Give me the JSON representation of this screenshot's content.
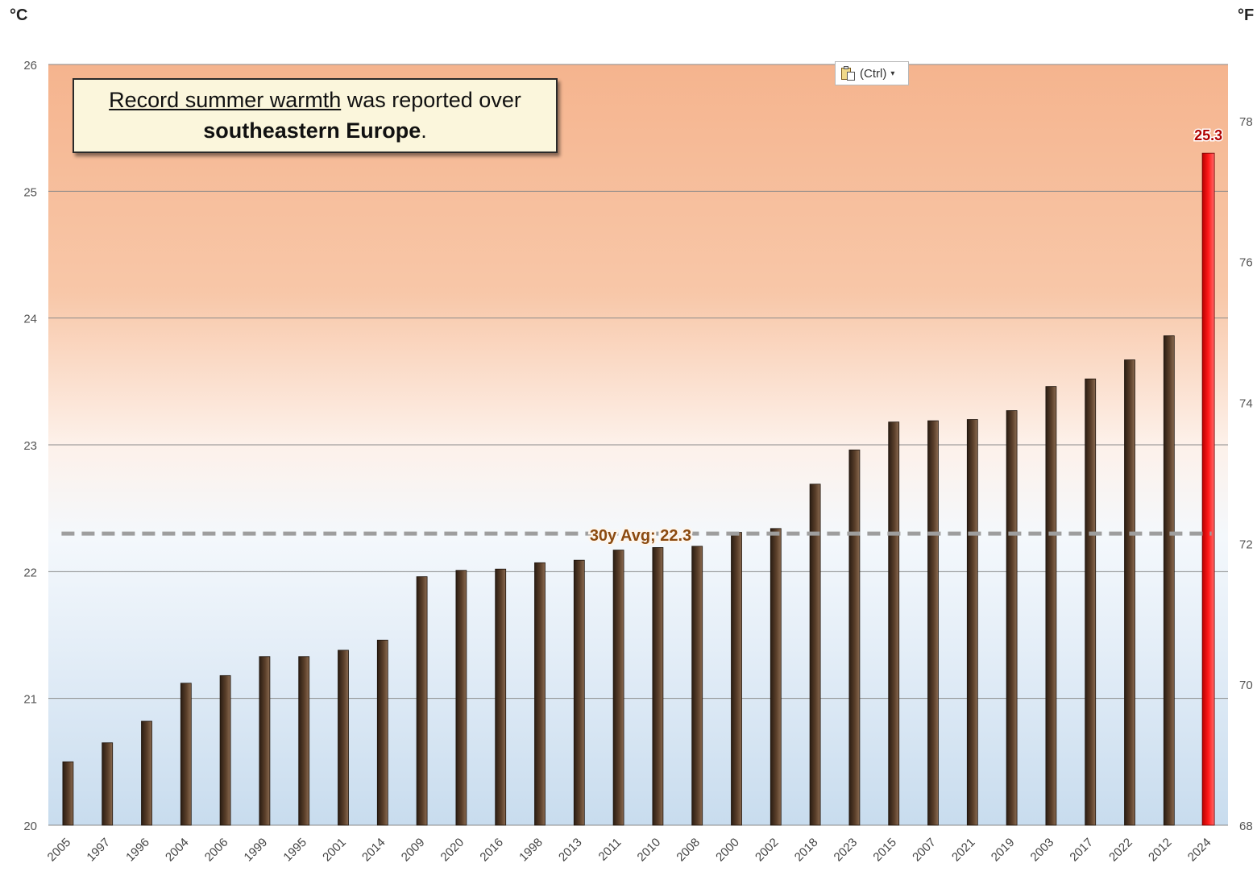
{
  "units": {
    "left": "°C",
    "right": "°F"
  },
  "callout": {
    "underlined": "Record summer warmth",
    "middle": " was reported over",
    "bold": "southeastern Europe",
    "end": "."
  },
  "paste_options": {
    "label": "(Ctrl)",
    "icon": "clipboard-icon"
  },
  "colors": {
    "bar": "#4a3322",
    "highlight_bar": "#e01010",
    "avg_line": "#9e9e9e",
    "avg_label": "#8b4a10",
    "highlight_label": "#b00000"
  },
  "chart_data": {
    "type": "bar",
    "categories": [
      "2005",
      "1997",
      "1996",
      "2004",
      "2006",
      "1999",
      "1995",
      "2001",
      "2014",
      "2009",
      "2020",
      "2016",
      "1998",
      "2013",
      "2011",
      "2010",
      "2008",
      "2000",
      "2002",
      "2018",
      "2023",
      "2015",
      "2007",
      "2021",
      "2019",
      "2003",
      "2017",
      "2022",
      "2012",
      "2024"
    ],
    "values": [
      20.5,
      20.65,
      20.82,
      21.12,
      21.18,
      21.33,
      21.33,
      21.38,
      21.46,
      21.96,
      22.01,
      22.02,
      22.07,
      22.09,
      22.17,
      22.19,
      22.2,
      22.31,
      22.34,
      22.69,
      22.96,
      23.18,
      23.19,
      23.2,
      23.27,
      23.46,
      23.52,
      23.67,
      23.86,
      25.3
    ],
    "title": "",
    "xlabel": "",
    "ylabel": "°C",
    "ylim": [
      20,
      26
    ],
    "y_ticks": [
      20,
      21,
      22,
      23,
      24,
      25,
      26
    ],
    "y2label": "°F",
    "y2_ticks": [
      68,
      70,
      72,
      74,
      76,
      78
    ],
    "grid": true,
    "highlight": {
      "category": "2024",
      "label": "25.3"
    },
    "reference_line": {
      "value": 22.3,
      "label": "30y Avg; 22.3",
      "style": "dashed"
    }
  }
}
